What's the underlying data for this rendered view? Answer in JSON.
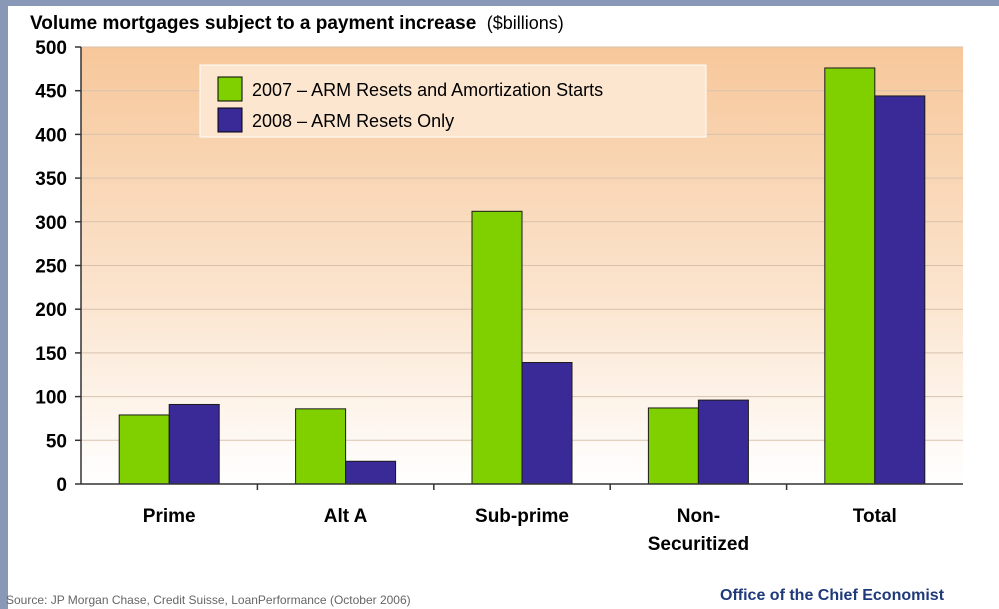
{
  "chart_data": {
    "type": "bar",
    "title": "Volume mortgages subject to a payment increase",
    "title_unit": "($billions)",
    "categories": [
      [
        "Prime"
      ],
      [
        "Alt A"
      ],
      [
        "Sub-prime"
      ],
      [
        "Non-",
        "Securitized"
      ],
      [
        "Total"
      ]
    ],
    "series": [
      {
        "name": "2007 – ARM Resets and Amortization Starts",
        "color": "#80d000",
        "values": [
          79,
          86,
          312,
          87,
          476
        ]
      },
      {
        "name": "2008 – ARM Resets Only",
        "color": "#3a2a98",
        "values": [
          91,
          26,
          139,
          96,
          444
        ]
      }
    ],
    "ylim": [
      0,
      500
    ],
    "yticks": [
      0,
      50,
      100,
      150,
      200,
      250,
      300,
      350,
      400,
      450,
      500
    ],
    "grid": true,
    "legend_position": "top-left"
  },
  "footer": {
    "source": "Source: JP Morgan Chase, Credit Suisse, LoanPerformance (October 2006)",
    "credit": "Office of the Chief Economist"
  }
}
